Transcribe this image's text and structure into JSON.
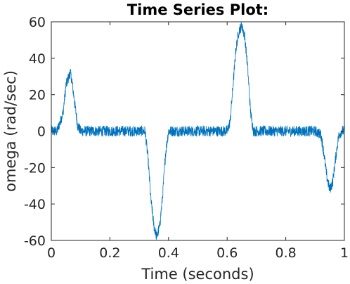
{
  "chart_data": {
    "type": "line",
    "title": "Time Series Plot:",
    "xlabel": "Time (seconds)",
    "ylabel": "omega (rad/sec)",
    "xlim": [
      0,
      1
    ],
    "ylim": [
      -60,
      60
    ],
    "xticks": [
      "0",
      "0.2",
      "0.4",
      "0.6",
      "0.8",
      "1"
    ],
    "yticks": [
      "-60",
      "-40",
      "-20",
      "0",
      "20",
      "40",
      "60"
    ],
    "grid": false,
    "line_color": "#0072BD",
    "noise_amplitude": 3,
    "series": [
      {
        "x": [
          0,
          0.02,
          0.04,
          0.05,
          0.06,
          0.065,
          0.07,
          0.08,
          0.09,
          0.1,
          0.2,
          0.3,
          0.32,
          0.33,
          0.34,
          0.35,
          0.36,
          0.37,
          0.38,
          0.39,
          0.4,
          0.5,
          0.6,
          0.61,
          0.62,
          0.63,
          0.64,
          0.65,
          0.66,
          0.67,
          0.68,
          0.69,
          0.7,
          0.8,
          0.9,
          0.92,
          0.93,
          0.94,
          0.95,
          0.96,
          0.97,
          0.98,
          0.99,
          1.0
        ],
        "y": [
          0,
          0,
          10,
          25,
          30,
          32,
          28,
          15,
          3,
          0,
          0,
          0,
          0,
          -15,
          -38,
          -52,
          -58,
          -52,
          -35,
          -12,
          0,
          0,
          0,
          5,
          25,
          45,
          55,
          58,
          52,
          35,
          10,
          0,
          0,
          0,
          0,
          -2,
          -12,
          -25,
          -32,
          -28,
          -15,
          -3,
          0,
          0
        ]
      }
    ]
  }
}
